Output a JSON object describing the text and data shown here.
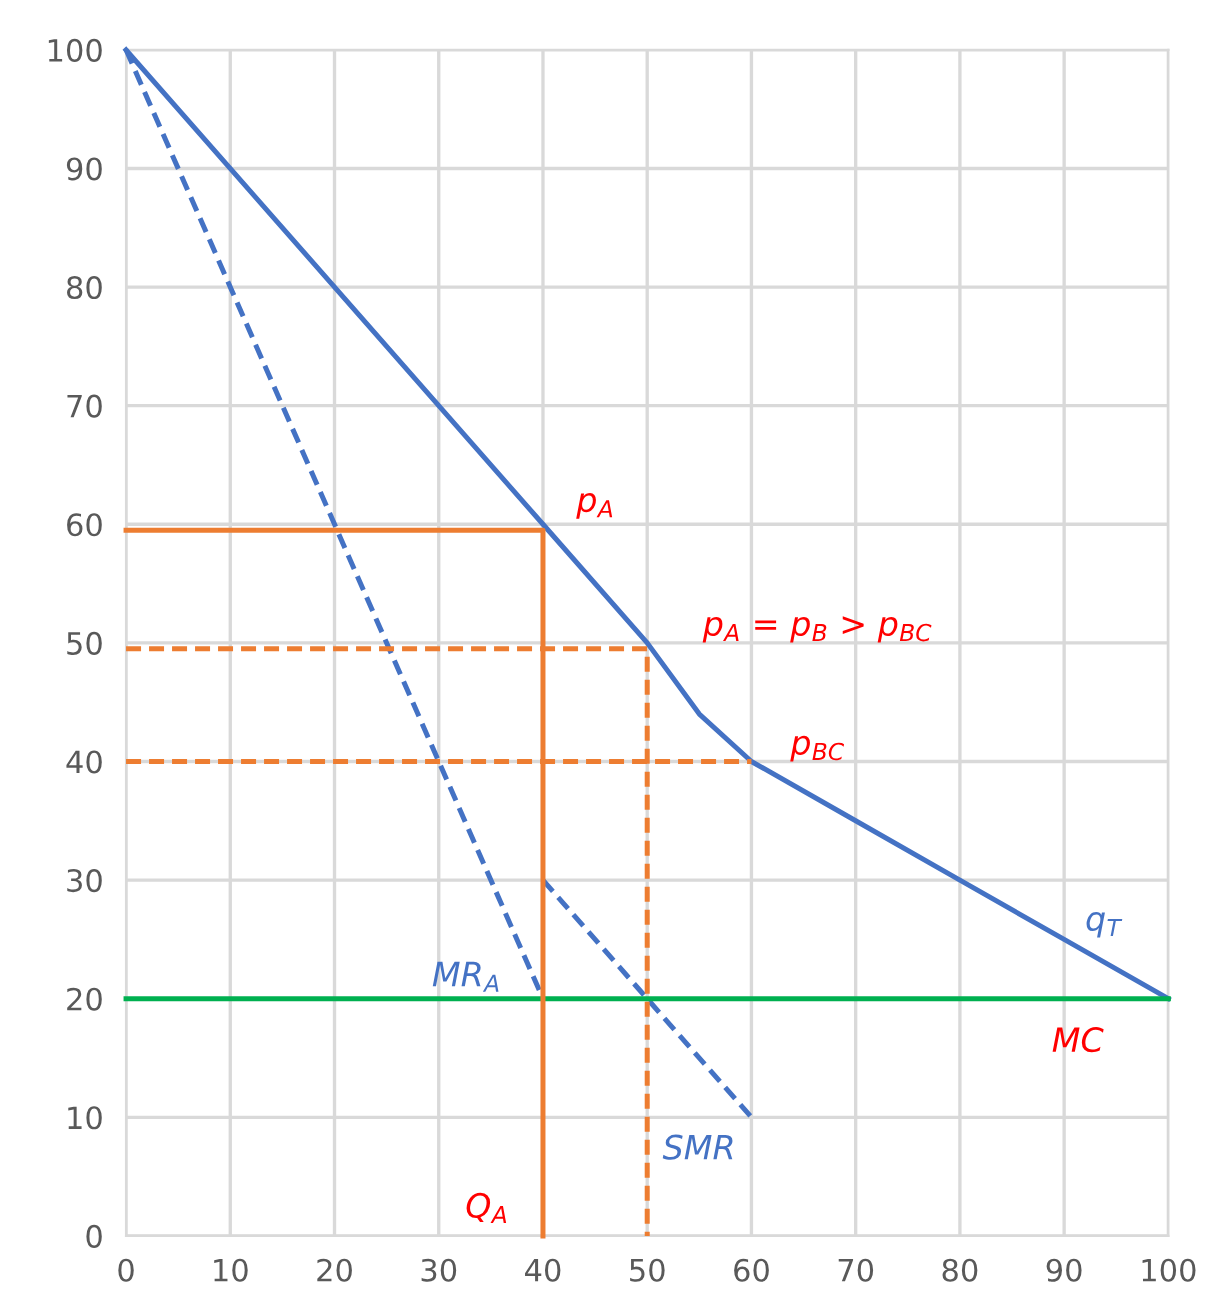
{
  "chart_data": {
    "type": "line",
    "xlim": [
      0,
      100
    ],
    "ylim": [
      0,
      100
    ],
    "xticks": [
      0,
      10,
      20,
      30,
      40,
      50,
      60,
      70,
      80,
      90,
      100
    ],
    "yticks": [
      0,
      10,
      20,
      30,
      40,
      50,
      60,
      70,
      80,
      90,
      100
    ],
    "grid": true,
    "marker": "none",
    "series": [
      {
        "name": "q$_{T}$",
        "color": "#4472c4",
        "line_style": "solid",
        "x": [
          0,
          40,
          50,
          55,
          60,
          70,
          80,
          90,
          100
        ],
        "values": [
          100,
          60,
          50,
          44,
          40,
          35,
          30,
          25,
          20
        ]
      },
      {
        "name": "MR$_{A}$",
        "color": "#4472c4",
        "line_style": "dashed",
        "x": [
          0,
          40
        ],
        "values": [
          100,
          20
        ]
      },
      {
        "name": "SMR",
        "color": "#4472c4",
        "line_style": "dashed",
        "x": [
          40,
          60
        ],
        "values": [
          30,
          10
        ]
      },
      {
        "color": "#00b050",
        "line_style": "solid",
        "x": [
          0,
          100
        ],
        "values": [
          20,
          20
        ]
      },
      {
        "color": "#ed7d31",
        "line_style": "solid",
        "x": [
          0,
          40,
          40
        ],
        "values": [
          59.5,
          59.5,
          0
        ]
      },
      {
        "color": "#ed7d31",
        "line_style": "dashed",
        "x": [
          0,
          50,
          50
        ],
        "values": [
          49.5,
          49.5,
          0
        ]
      },
      {
        "color": "#ed7d31",
        "line_style": "dashed",
        "x": [
          0,
          60
        ],
        "values": [
          40,
          40
        ]
      }
    ],
    "annotations": [
      {
        "text": "p$_{A}$",
        "x": 40,
        "y": 60
      },
      {
        "text": "p$_{A}$ = p$_{B}$ > p$_{BC}$",
        "x": 50,
        "y": 50
      },
      {
        "text": "p$_{BC}$",
        "x": 60,
        "y": 40
      },
      {
        "text": "MC",
        "x": 100,
        "y": 20
      },
      {
        "text": "Q$_{A}$",
        "x": 40,
        "y": 0
      }
    ]
  }
}
